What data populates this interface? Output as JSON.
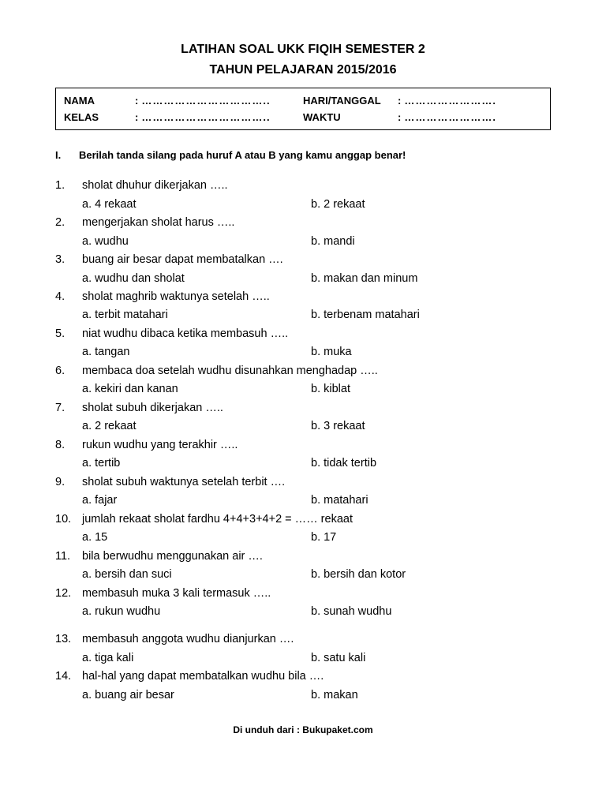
{
  "title1": "LATIHAN SOAL UKK FIQIH SEMESTER 2",
  "title2": "TAHUN PELAJARAN 2015/2016",
  "info": {
    "nama_label": "NAMA",
    "kelas_label": "KELAS",
    "hari_label": "HARI/TANGGAL",
    "waktu_label": "WAKTU",
    "dots_long": "……………………………..",
    "dots_short": "……………………."
  },
  "instruction_num": "I.",
  "instruction_text": "Berilah tanda silang pada huruf  A atau B yang kamu anggap benar!",
  "questions": [
    {
      "n": "1.",
      "q": "sholat dhuhur dikerjakan …..",
      "a": "a. 4 rekaat",
      "b": "b. 2 rekaat"
    },
    {
      "n": "2.",
      "q": "mengerjakan sholat harus …..",
      "a": "a. wudhu",
      "b": "b. mandi"
    },
    {
      "n": "3.",
      "q": "buang air besar dapat membatalkan ….",
      "a": "a. wudhu dan sholat",
      "b": "b. makan dan minum"
    },
    {
      "n": "4.",
      "q": "sholat maghrib waktunya setelah …..",
      "a": "a. terbit matahari",
      "b": "b. terbenam matahari"
    },
    {
      "n": "5.",
      "q": "niat wudhu dibaca ketika membasuh …..",
      "a": "a. tangan",
      "b": "b. muka"
    },
    {
      "n": "6.",
      "q": "membaca doa setelah wudhu disunahkan menghadap …..",
      "a": "a. kekiri dan kanan",
      "b": "b. kiblat"
    },
    {
      "n": "7.",
      "q": "sholat subuh dikerjakan …..",
      "a": "a. 2 rekaat",
      "b": "b. 3 rekaat"
    },
    {
      "n": "8.",
      "q": "rukun wudhu yang terakhir …..",
      "a": "a. tertib",
      "b": "b. tidak tertib"
    },
    {
      "n": "9.",
      "q": "sholat subuh waktunya setelah terbit ….",
      "a": "a. fajar",
      "b": "b. matahari"
    },
    {
      "n": "10.",
      "q": "jumlah rekaat sholat fardhu 4+4+3+4+2 = …… rekaat",
      "a": "a. 15",
      "b": "b. 17"
    },
    {
      "n": "11.",
      "q": "bila berwudhu menggunakan air ….",
      "a": "a. bersih dan suci",
      "b": "b. bersih dan kotor"
    },
    {
      "n": "12.",
      "q": "membasuh muka 3 kali termasuk …..",
      "a": "a. rukun wudhu",
      "b": "b. sunah wudhu",
      "gapAfter": true
    },
    {
      "n": "13.",
      "q": "membasuh anggota wudhu dianjurkan ….",
      "a": "a. tiga kali",
      "b": "b. satu kali"
    },
    {
      "n": "14.",
      "q": "hal-hal yang dapat membatalkan wudhu bila ….",
      "a": "a. buang air besar",
      "b": "b. makan"
    }
  ],
  "footer": "Di unduh dari : Bukupaket.com"
}
